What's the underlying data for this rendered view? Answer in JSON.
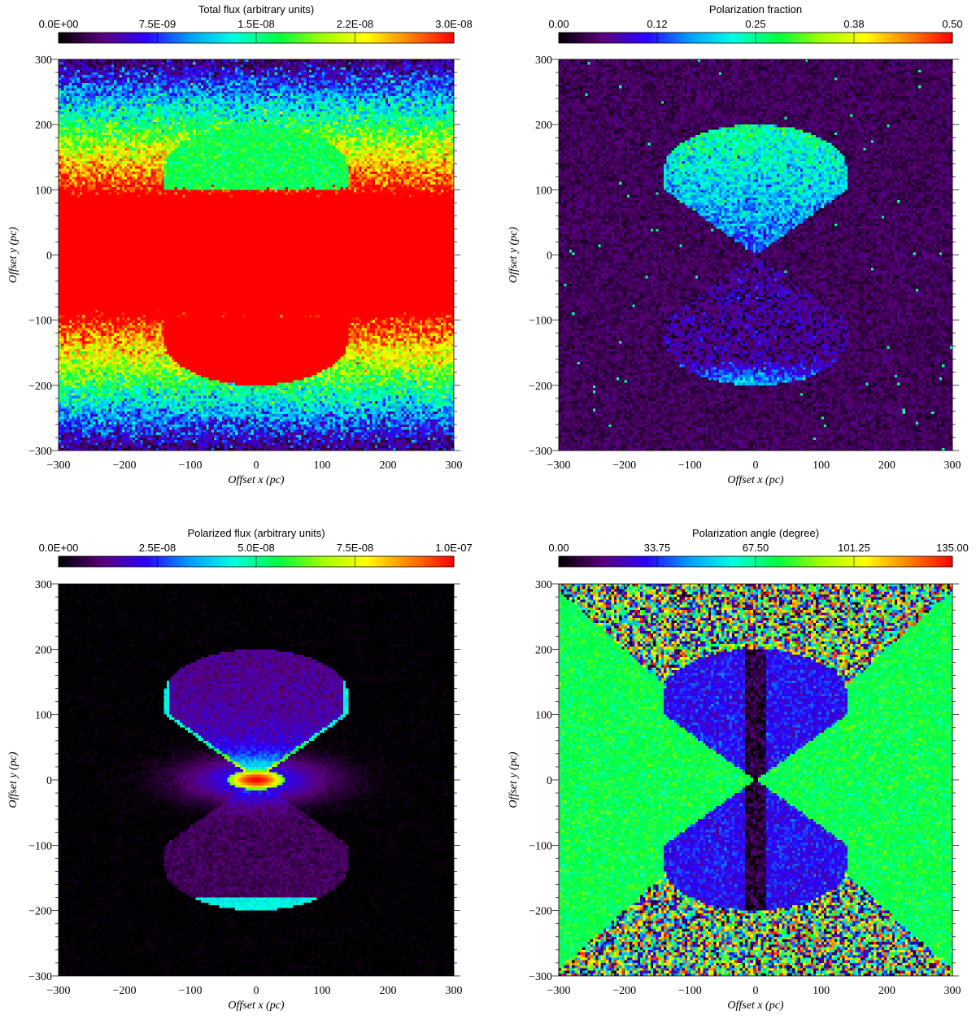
{
  "chart_data": [
    {
      "type": "heatmap",
      "title": "Total flux (arbitrary units)",
      "colorbar_ticks": [
        "0.0E+00",
        "7.5E-09",
        "1.5E-08",
        "2.2E-08",
        "3.0E-08"
      ],
      "colorbar_range": [
        0,
        3e-08
      ],
      "xlabel": "Offset x (pc)",
      "ylabel": "Offset y (pc)",
      "xlim": [
        -300,
        300
      ],
      "ylim": [
        -300,
        300
      ],
      "xticks": [
        "−300",
        "−200",
        "−100",
        "0",
        "100",
        "200",
        "300"
      ],
      "yticks": [
        "300",
        "200",
        "100",
        "0",
        "−100",
        "−200",
        "−300"
      ],
      "pattern": "total_flux"
    },
    {
      "type": "heatmap",
      "title": "Polarization fraction",
      "colorbar_ticks": [
        "0.00",
        "0.12",
        "0.25",
        "0.38",
        "0.50"
      ],
      "colorbar_range": [
        0,
        0.5
      ],
      "xlabel": "Offset x (pc)",
      "ylabel": "Offset y (pc)",
      "xlim": [
        -300,
        300
      ],
      "ylim": [
        -300,
        300
      ],
      "xticks": [
        "−300",
        "−200",
        "−100",
        "0",
        "100",
        "200",
        "300"
      ],
      "yticks": [
        "300",
        "200",
        "100",
        "0",
        "−100",
        "−200",
        "−300"
      ],
      "pattern": "pol_fraction"
    },
    {
      "type": "heatmap",
      "title": "Polarized flux (arbitrary units)",
      "colorbar_ticks": [
        "0.0E+00",
        "2.5E-08",
        "5.0E-08",
        "7.5E-08",
        "1.0E-07"
      ],
      "colorbar_range": [
        0,
        1e-07
      ],
      "xlabel": "Offset x (pc)",
      "ylabel": "Offset y (pc)",
      "xlim": [
        -300,
        300
      ],
      "ylim": [
        -300,
        300
      ],
      "xticks": [
        "−300",
        "−200",
        "−100",
        "0",
        "100",
        "200",
        "300"
      ],
      "yticks": [
        "300",
        "200",
        "100",
        "0",
        "−100",
        "−200",
        "−300"
      ],
      "pattern": "pol_flux"
    },
    {
      "type": "heatmap",
      "title": "Polarization angle (degree)",
      "colorbar_ticks": [
        "0.00",
        "33.75",
        "67.50",
        "101.25",
        "135.00"
      ],
      "colorbar_range": [
        0,
        135
      ],
      "xlabel": "Offset x (pc)",
      "ylabel": "Offset y (pc)",
      "xlim": [
        -300,
        300
      ],
      "ylim": [
        -300,
        300
      ],
      "xticks": [
        "−300",
        "−200",
        "−100",
        "0",
        "100",
        "200",
        "300"
      ],
      "yticks": [
        "300",
        "200",
        "100",
        "0",
        "−100",
        "−200",
        "−300"
      ],
      "pattern": "pol_angle"
    }
  ],
  "colormap": "rainbow",
  "colormap_stops": [
    "#000000",
    "#5a007a",
    "#2a00ff",
    "#00a0ff",
    "#00ffe0",
    "#00ff40",
    "#a0ff00",
    "#ffff00",
    "#ff8000",
    "#ff0000"
  ]
}
